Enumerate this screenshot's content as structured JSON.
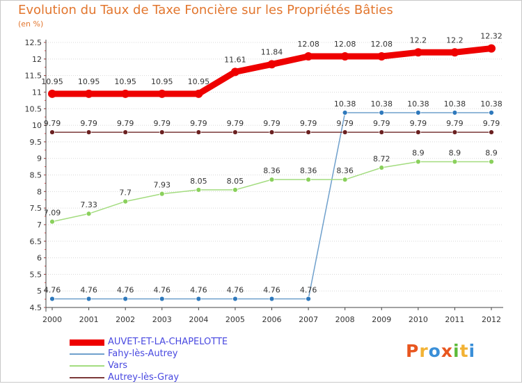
{
  "chart_data": {
    "type": "line",
    "title": "Evolution du Taux de Taxe Foncière sur les Propriétés Bâties",
    "ylabel": "(en %)",
    "xlabel": "",
    "x": [
      "2000",
      "2001",
      "2002",
      "2003",
      "2004",
      "2005",
      "2006",
      "2007",
      "2008",
      "2009",
      "2010",
      "2011",
      "2012"
    ],
    "ylim": [
      4.5,
      12.5
    ],
    "yticks": [
      "4.5",
      "5",
      "5.5",
      "6",
      "6.5",
      "7",
      "7.5",
      "8",
      "8.5",
      "9",
      "9.5",
      "10",
      "10.5",
      "11",
      "11.5",
      "12",
      "12.5"
    ],
    "grid": "horizontal dotted",
    "legend_position": "bottom-left",
    "series": [
      {
        "name": "AUVET-ET-LA-CHAPELOTTE",
        "color": "#ee0000",
        "width": 9,
        "values": [
          10.95,
          10.95,
          10.95,
          10.95,
          10.95,
          11.61,
          11.84,
          12.08,
          12.08,
          12.08,
          12.2,
          12.2,
          12.32
        ],
        "labels": [
          "10.95",
          "10.95",
          "10.95",
          "10.95",
          "10.95",
          "11.61",
          "11.84",
          "12.08",
          "12.08",
          "12.08",
          "12.2",
          "12.2",
          "12.32"
        ]
      },
      {
        "name": "Fahy-lès-Autrey",
        "color": "#6fa0cc",
        "width": 1.5,
        "marker": "#2f79bc",
        "values": [
          4.76,
          4.76,
          4.76,
          4.76,
          4.76,
          4.76,
          4.76,
          4.76,
          10.38,
          10.38,
          10.38,
          10.38,
          10.38
        ],
        "labels": [
          "4.76",
          "4.76",
          "4.76",
          "4.76",
          "4.76",
          "4.76",
          "4.76",
          "4.76",
          "10.38",
          "10.38",
          "10.38",
          "10.38",
          "10.38"
        ]
      },
      {
        "name": "Vars",
        "color": "#a3dc7f",
        "width": 1.5,
        "marker": "#8ad05c",
        "values": [
          7.09,
          7.33,
          7.7,
          7.93,
          8.05,
          8.05,
          8.36,
          8.36,
          8.36,
          8.72,
          8.9,
          8.9,
          8.9
        ],
        "labels": [
          "7.09",
          "7.33",
          "7.7",
          "7.93",
          "8.05",
          "8.05",
          "8.36",
          "8.36",
          "8.36",
          "8.72",
          "8.9",
          "8.9",
          "8.9"
        ]
      },
      {
        "name": "Autrey-lès-Gray",
        "color": "#7a3838",
        "width": 1.5,
        "marker": "#6a2020",
        "values": [
          9.79,
          9.79,
          9.79,
          9.79,
          9.79,
          9.79,
          9.79,
          9.79,
          9.79,
          9.79,
          9.79,
          9.79,
          9.79
        ],
        "labels": [
          "9.79",
          "9.79",
          "9.79",
          "9.79",
          "9.79",
          "9.79",
          "9.79",
          "9.79",
          "9.79",
          "9.79",
          "9.79",
          "9.79",
          "9.79"
        ]
      }
    ]
  },
  "logo": {
    "text": "Proxiti",
    "letters": [
      "P",
      "r",
      "o",
      "x",
      "i",
      "t",
      "i"
    ],
    "colors": [
      "#e8561f",
      "#f2b234",
      "#3a8fd8",
      "#e8561f",
      "#5dbb3a",
      "#f2b234",
      "#3a8fd8"
    ]
  }
}
